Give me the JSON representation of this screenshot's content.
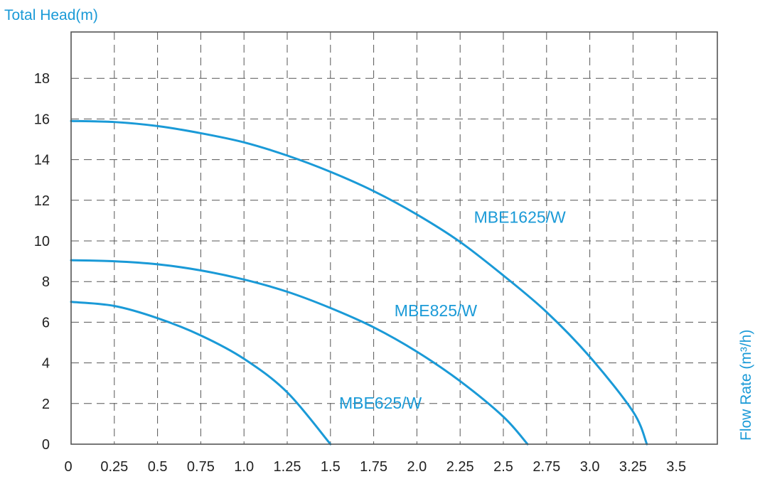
{
  "chart_data": {
    "type": "line",
    "title": "",
    "ylabel": "Total Head(m)",
    "xlabel": "Flow Rate (m³/h)",
    "xlim": [
      0,
      3.75
    ],
    "ylim": [
      0,
      20
    ],
    "x_ticks": [
      "0",
      "0.25",
      "0.5",
      "0.75",
      "1.0",
      "1.25",
      "1.5",
      "1.75",
      "2.0",
      "2.25",
      "2.5",
      "2.75",
      "3.0",
      "3.25",
      "3.5"
    ],
    "x_tick_values": [
      0,
      0.25,
      0.5,
      0.75,
      1.0,
      1.25,
      1.5,
      1.75,
      2.0,
      2.25,
      2.5,
      2.75,
      3.0,
      3.25,
      3.5
    ],
    "y_ticks": [
      "0",
      "2",
      "4",
      "6",
      "8",
      "10",
      "12",
      "14",
      "16",
      "18"
    ],
    "y_tick_values": [
      0,
      2,
      4,
      6,
      8,
      10,
      12,
      14,
      16,
      18
    ],
    "grid": true,
    "colors": {
      "series": "#1a9ad7",
      "axis_text": "#222222",
      "grid": "#555555"
    },
    "series": [
      {
        "name": "MBE1625/W",
        "x": [
          0,
          0.25,
          0.5,
          0.75,
          1.0,
          1.25,
          1.5,
          1.75,
          2.0,
          2.25,
          2.5,
          2.75,
          3.0,
          3.25,
          3.33
        ],
        "y": [
          15.9,
          15.85,
          15.65,
          15.3,
          14.85,
          14.2,
          13.4,
          12.45,
          11.3,
          9.95,
          8.3,
          6.5,
          4.3,
          1.6,
          0
        ]
      },
      {
        "name": "MBE825/W",
        "x": [
          0,
          0.25,
          0.5,
          0.75,
          1.0,
          1.25,
          1.5,
          1.75,
          2.0,
          2.25,
          2.5,
          2.64
        ],
        "y": [
          9.05,
          9.0,
          8.85,
          8.55,
          8.1,
          7.5,
          6.7,
          5.75,
          4.55,
          3.1,
          1.35,
          0
        ]
      },
      {
        "name": "MBE625/W",
        "x": [
          0,
          0.25,
          0.5,
          0.75,
          1.0,
          1.25,
          1.5
        ],
        "y": [
          7.0,
          6.8,
          6.2,
          5.35,
          4.2,
          2.55,
          0
        ]
      }
    ],
    "series_label_positions": [
      {
        "name": "MBE1625/W",
        "anchor": [
          2.33,
          10.9
        ]
      },
      {
        "name": "MBE825/W",
        "anchor": [
          1.87,
          6.3
        ]
      },
      {
        "name": "MBE625/W",
        "anchor": [
          1.55,
          1.75
        ]
      }
    ]
  }
}
